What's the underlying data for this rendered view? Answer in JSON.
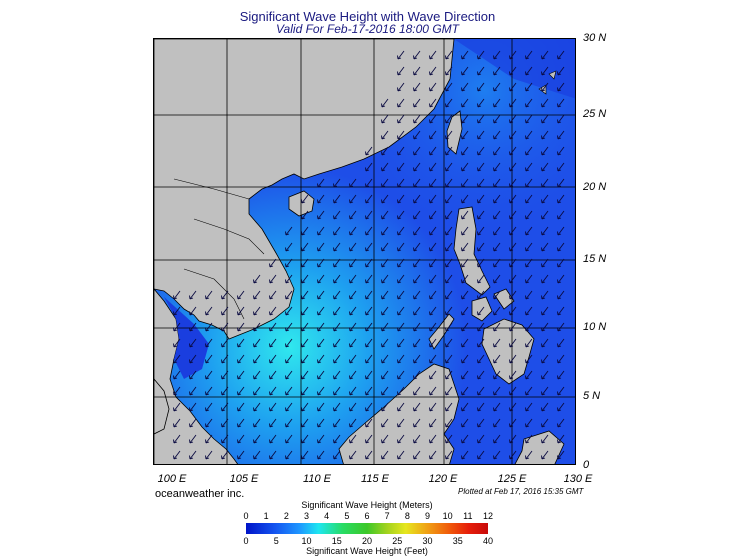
{
  "header": {
    "title": "Significant Wave Height with Wave Direction",
    "subtitle": "Valid For Feb-17-2016 18:00 GMT"
  },
  "map": {
    "region": "South China Sea",
    "latitude_labels": [
      "30 N",
      "25 N",
      "20 N",
      "15 N",
      "10 N",
      "5 N",
      "0"
    ],
    "longitude_labels": [
      "100 E",
      "105 E",
      "110 E",
      "115 E",
      "120 E",
      "125 E",
      "130 E"
    ],
    "colors": {
      "land": "#c0c0c0",
      "sea_deep": "#1e46e6",
      "sea_high": "#28e6e6",
      "grid": "#000000"
    }
  },
  "footer": {
    "credit": "oceanweather inc.",
    "plotted": "Plotted at Feb 17, 2016 15:35 GMT"
  },
  "colorbar": {
    "meters_title": "Significant Wave Height (Meters)",
    "meters_ticks": [
      "0",
      "1",
      "2",
      "3",
      "4",
      "5",
      "6",
      "7",
      "8",
      "9",
      "10",
      "11",
      "12"
    ],
    "feet_title": "Significant Wave Height (Feet)",
    "feet_ticks": [
      "0",
      "5",
      "10",
      "15",
      "20",
      "25",
      "30",
      "35",
      "40"
    ]
  }
}
